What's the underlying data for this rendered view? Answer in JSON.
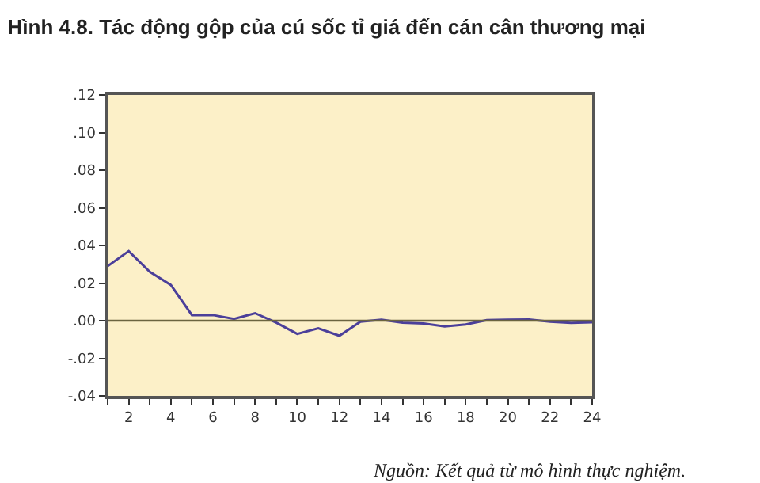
{
  "chart_data": {
    "type": "line",
    "title": "Hình 4.8. Tác động gộp của cú sốc tỉ giá đến cán cân thương mại",
    "x": [
      1,
      2,
      3,
      4,
      5,
      6,
      7,
      8,
      9,
      10,
      11,
      12,
      13,
      14,
      15,
      16,
      17,
      18,
      19,
      20,
      21,
      22,
      23,
      24
    ],
    "series": [
      {
        "color": "#4b3f9a",
        "values": [
          0.029,
          0.037,
          0.026,
          0.019,
          0.003,
          0.003,
          0.001,
          0.004,
          -0.001,
          -0.007,
          -0.004,
          -0.008,
          -0.0005,
          0.0005,
          -0.001,
          -0.0015,
          -0.003,
          -0.002,
          0.0003,
          0.0005,
          0.0006,
          -0.0005,
          -0.0012,
          -0.0008
        ]
      }
    ],
    "xlim": [
      1,
      24
    ],
    "xticks": [
      {
        "value": 1,
        "label": null
      },
      2,
      {
        "value": 3,
        "label": null
      },
      4,
      {
        "value": 5,
        "label": null
      },
      6,
      {
        "value": 7,
        "label": null
      },
      8,
      {
        "value": 9,
        "label": null
      },
      10,
      {
        "value": 11,
        "label": null
      },
      12,
      {
        "value": 13,
        "label": null
      },
      14,
      {
        "value": 15,
        "label": null
      },
      16,
      {
        "value": 17,
        "label": null
      },
      18,
      {
        "value": 19,
        "label": null
      },
      20,
      {
        "value": 21,
        "label": null
      },
      22,
      {
        "value": 23,
        "label": null
      },
      24
    ],
    "ylim": [
      -0.04,
      0.12
    ],
    "yticks": [
      {
        "value": -0.04,
        "label": "-.04"
      },
      {
        "value": -0.02,
        "label": "-.02"
      },
      {
        "value": 0,
        "label": ".00"
      },
      {
        "value": 0.02,
        "label": ".02"
      },
      {
        "value": 0.04,
        "label": ".04"
      },
      {
        "value": 0.06,
        "label": ".06"
      },
      {
        "value": 0.08,
        "label": ".08"
      },
      {
        "value": 0.1,
        "label": ".10"
      },
      {
        "value": 0.12,
        "label": ".12"
      }
    ],
    "ref_lines": [
      {
        "axis": "y",
        "value": 0,
        "color": "#6b6440"
      }
    ],
    "grid": false,
    "legend": false,
    "marker": "none",
    "line_style": "solid",
    "annotations": [
      "Nguồn: Kết quả từ mô hình thực nghiệm."
    ]
  }
}
